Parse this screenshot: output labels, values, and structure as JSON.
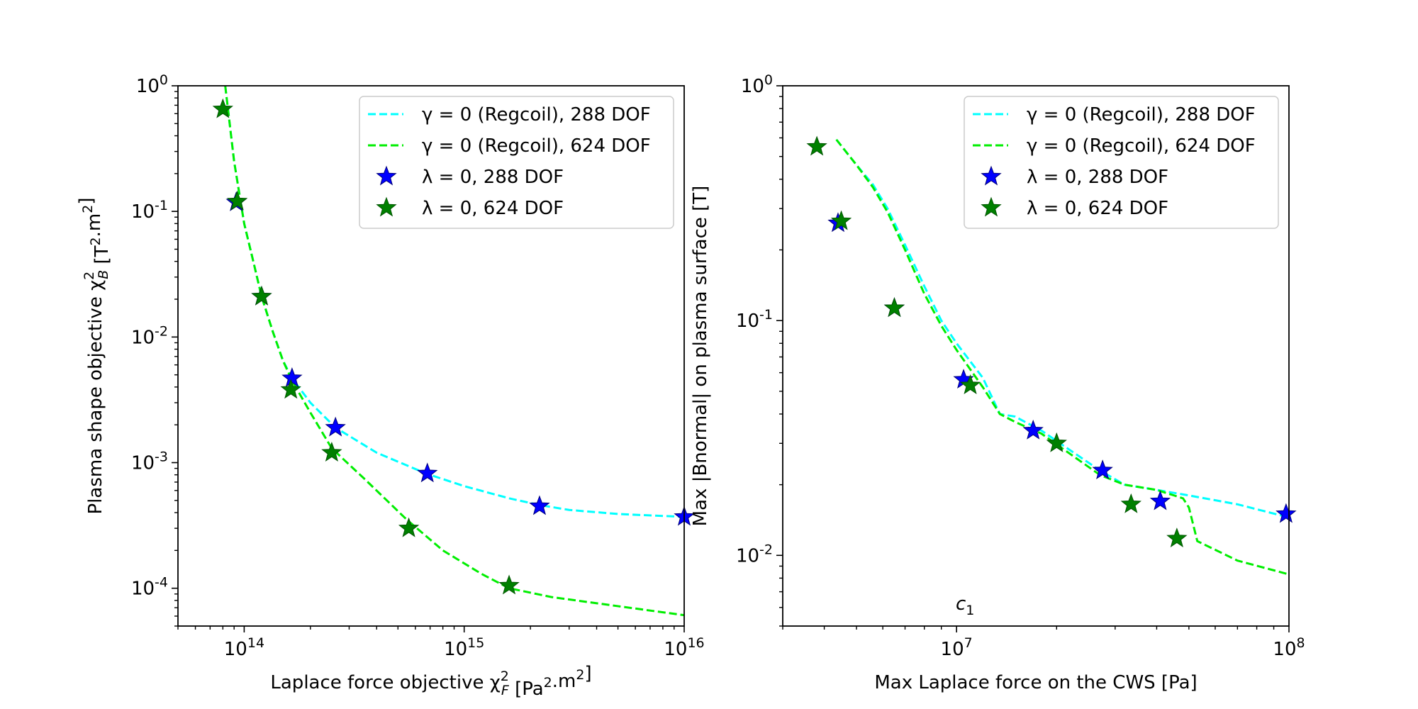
{
  "chart_data": [
    {
      "type": "line",
      "log_x": true,
      "log_y": true,
      "xlim": [
        50000000000000.0,
        1e+16
      ],
      "ylim": [
        5e-05,
        1
      ],
      "xlabel": "Laplace force objective χ²F [Pa².m²]",
      "ylabel": "Plasma shape objective χ²B [T².m²]",
      "legend_position": "top-right",
      "grid": false,
      "x_ticks": [
        {
          "value": 100000000000000.0,
          "label": "10^14"
        },
        {
          "value": 1000000000000000.0,
          "label": "10^15"
        },
        {
          "value": 1e+16,
          "label": "10^16"
        }
      ],
      "y_ticks": [
        {
          "value": 1,
          "label": "10^0"
        },
        {
          "value": 0.1,
          "label": "10^-1"
        },
        {
          "value": 0.01,
          "label": "10^-2"
        },
        {
          "value": 0.001,
          "label": "10^-3"
        },
        {
          "value": 0.0001,
          "label": "10^-4"
        }
      ],
      "series": [
        {
          "name": "γ = 0 (Regcoil), 288 DOF",
          "style": "dashed-line",
          "color": "#00ffff",
          "x": [
            82000000000000.0,
            90000000000000.0,
            100000000000000.0,
            110000000000000.0,
            120000000000000.0,
            135000000000000.0,
            150000000000000.0,
            165000000000000.0,
            200000000000000.0,
            260000000000000.0,
            400000000000000.0,
            670000000000000.0,
            1000000000000000.0,
            1600000000000000.0,
            2200000000000000.0,
            3000000000000000.0,
            5000000000000000.0,
            1e+16
          ],
          "y": [
            1.0,
            0.25,
            0.08,
            0.04,
            0.021,
            0.011,
            0.0065,
            0.0047,
            0.003,
            0.0019,
            0.0012,
            0.00082,
            0.00065,
            0.00052,
            0.00046,
            0.00042,
            0.00039,
            0.00037
          ]
        },
        {
          "name": "γ = 0 (Regcoil), 624 DOF",
          "style": "dashed-line",
          "color": "#00ee00",
          "x": [
            82000000000000.0,
            90000000000000.0,
            100000000000000.0,
            110000000000000.0,
            120000000000000.0,
            135000000000000.0,
            150000000000000.0,
            165000000000000.0,
            200000000000000.0,
            250000000000000.0,
            350000000000000.0,
            550000000000000.0,
            800000000000000.0,
            1200000000000000.0,
            1600000000000000.0,
            2500000000000000.0,
            5000000000000000.0,
            1e+16
          ],
          "y": [
            1.0,
            0.25,
            0.08,
            0.04,
            0.021,
            0.011,
            0.0065,
            0.0045,
            0.0025,
            0.0013,
            0.00075,
            0.00035,
            0.0002,
            0.00013,
            0.0001,
            8.5e-05,
            7.2e-05,
            6.1e-05
          ]
        },
        {
          "name": "λ = 0, 288 DOF",
          "style": "star-markers",
          "color": "#0000ff",
          "x": [
            92000000000000.0,
            120000000000000.0,
            165000000000000.0,
            260000000000000.0,
            680000000000000.0,
            2200000000000000.0,
            1e+16
          ],
          "y": [
            0.118,
            0.021,
            0.0047,
            0.0019,
            0.00082,
            0.00045,
            0.00037
          ]
        },
        {
          "name": "λ = 0, 624 DOF",
          "style": "star-markers",
          "color": "#008000",
          "x": [
            80000000000000.0,
            93000000000000.0,
            120000000000000.0,
            163000000000000.0,
            250000000000000.0,
            560000000000000.0,
            1600000000000000.0
          ],
          "y": [
            0.65,
            0.12,
            0.021,
            0.0038,
            0.0012,
            0.0003,
            0.000105
          ]
        }
      ]
    },
    {
      "type": "line",
      "log_x": true,
      "log_y": true,
      "xlim": [
        3000000.0,
        100000000.0
      ],
      "ylim": [
        0.005,
        1
      ],
      "xlabel": "Max Laplace force on the CWS [Pa]",
      "ylabel": "Max |Bnormal| on plasma surface [T]",
      "annotation": "c1",
      "legend_position": "top-right",
      "grid": false,
      "x_ticks": [
        {
          "value": 10000000.0,
          "label": "10^7"
        },
        {
          "value": 100000000.0,
          "label": "10^8"
        }
      ],
      "y_ticks": [
        {
          "value": 1,
          "label": "10^0"
        },
        {
          "value": 0.1,
          "label": "10^-1"
        },
        {
          "value": 0.01,
          "label": "10^-2"
        }
      ],
      "series": [
        {
          "name": "γ = 0 (Regcoil), 288 DOF",
          "style": "dashed-line",
          "color": "#00ffff",
          "x": [
            4350000.0,
            5000000.0,
            5600000.0,
            6200000.0,
            7000000.0,
            8000000.0,
            9000000.0,
            10000000.0,
            12000000.0,
            13500000.0,
            15000000.0,
            18000000.0,
            22000000.0,
            27000000.0,
            32000000.0,
            40000000.0,
            50000000.0,
            70000000.0,
            100000000.0
          ],
          "y": [
            0.59,
            0.46,
            0.38,
            0.3,
            0.21,
            0.14,
            0.1,
            0.08,
            0.057,
            0.04,
            0.039,
            0.034,
            0.028,
            0.023,
            0.02,
            0.019,
            0.018,
            0.0165,
            0.0145
          ]
        },
        {
          "name": "γ = 0 (Regcoil), 624 DOF",
          "style": "dashed-line",
          "color": "#00ee00",
          "x": [
            4350000.0,
            5000000.0,
            5600000.0,
            6200000.0,
            7000000.0,
            8000000.0,
            9000000.0,
            10000000.0,
            12000000.0,
            13500000.0,
            15000000.0,
            18000000.0,
            22000000.0,
            27000000.0,
            32000000.0,
            40000000.0,
            48000000.0,
            50000000.0,
            53000000.0,
            70000000.0,
            100000000.0
          ],
          "y": [
            0.59,
            0.46,
            0.37,
            0.29,
            0.2,
            0.13,
            0.095,
            0.075,
            0.052,
            0.04,
            0.037,
            0.033,
            0.027,
            0.022,
            0.02,
            0.019,
            0.0175,
            0.016,
            0.0115,
            0.0095,
            0.0083
          ]
        },
        {
          "name": "λ = 0, 288 DOF",
          "style": "star-markers",
          "color": "#0000ff",
          "x": [
            4400000.0,
            6500000.0,
            10500000.0,
            17000000.0,
            27500000.0,
            41000000.0,
            98000000.0
          ],
          "y": [
            0.26,
            0.113,
            0.056,
            0.034,
            0.023,
            0.017,
            0.015
          ]
        },
        {
          "name": "λ = 0, 624 DOF",
          "style": "star-markers",
          "color": "#008000",
          "x": [
            3800000.0,
            4500000.0,
            6500000.0,
            11000000.0,
            20000000.0,
            33500000.0,
            46000000.0
          ],
          "y": [
            0.55,
            0.265,
            0.113,
            0.053,
            0.03,
            0.0165,
            0.0118
          ]
        }
      ]
    }
  ]
}
